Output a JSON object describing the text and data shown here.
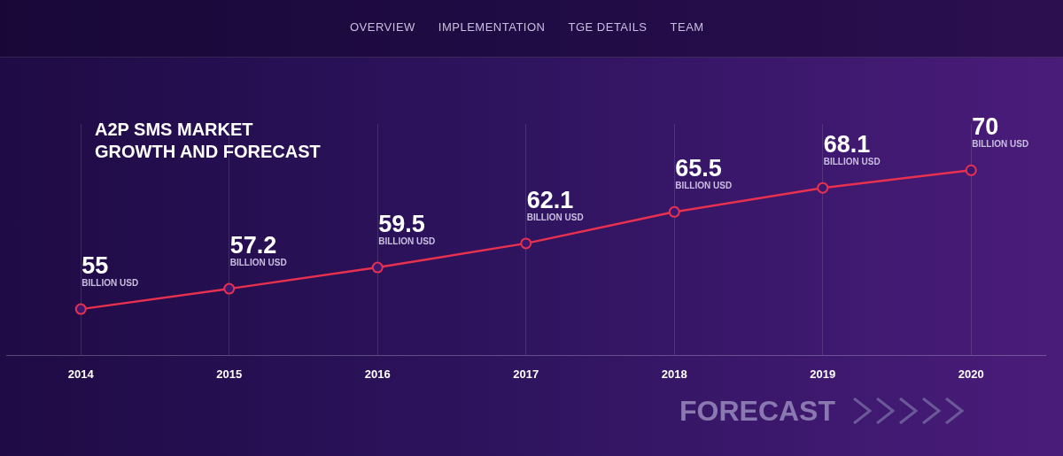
{
  "chart_data": {
    "type": "line",
    "title": "A2P SMS MARKET\nGROWTH AND FORECAST",
    "categories": [
      "2014",
      "2015",
      "2016",
      "2017",
      "2018",
      "2019",
      "2020"
    ],
    "series": [
      {
        "color": "#e8304f",
        "values": [
          55,
          57.2,
          59.5,
          62.1,
          65.5,
          68.1,
          70
        ]
      }
    ],
    "ylim": [
      50,
      75
    ],
    "data_labels": true,
    "grid": "x",
    "legend": false,
    "marker": "circle",
    "line_style": "solid",
    "tick_labels": "x",
    "annotations": [
      "OVERVIEW",
      "IMPLEMENTATION",
      "TGE DETAILS",
      "TEAM",
      "FORECAST",
      {
        "text": "BILLION USD",
        "x": "2014",
        "y": 55
      },
      {
        "text": "BILLION USD",
        "x": "2015",
        "y": 57.2
      },
      {
        "text": "BILLION USD",
        "x": "2016",
        "y": 59.5
      },
      {
        "text": "BILLION USD",
        "x": "2017",
        "y": 62.1
      },
      {
        "text": "BILLION USD",
        "x": "2018",
        "y": 65.5
      },
      {
        "text": "BILLION USD",
        "x": "2019",
        "y": 68.1
      },
      {
        "text": "BILLION USD",
        "x": "2020",
        "y": 70
      }
    ]
  }
}
